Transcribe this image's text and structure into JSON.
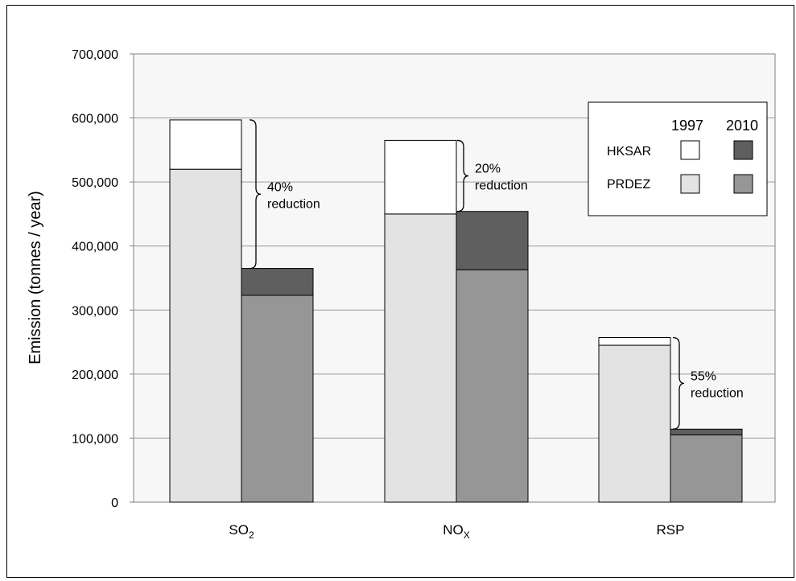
{
  "chart_data": {
    "type": "bar",
    "stacked": true,
    "ylabel": "Emission (tonnes / year)",
    "ylim": [
      0,
      700000
    ],
    "yticks": [
      0,
      100000,
      200000,
      300000,
      400000,
      500000,
      600000,
      700000
    ],
    "ytick_labels": [
      "0",
      "100,000",
      "200,000",
      "300,000",
      "400,000",
      "500,000",
      "600,000",
      "700,000"
    ],
    "grid": true,
    "categories": [
      {
        "base": "SO",
        "sub": "2"
      },
      {
        "base": "NO",
        "sub": "X"
      },
      {
        "base": "RSP",
        "sub": ""
      }
    ],
    "bars": [
      {
        "category": 0,
        "year": "1997",
        "prdez": 520000,
        "hksar": 77000
      },
      {
        "category": 0,
        "year": "2010",
        "prdez": 323000,
        "hksar": 42000
      },
      {
        "category": 1,
        "year": "1997",
        "prdez": 450000,
        "hksar": 115000
      },
      {
        "category": 1,
        "year": "2010",
        "prdez": 363000,
        "hksar": 91000
      },
      {
        "category": 2,
        "year": "1997",
        "prdez": 245000,
        "hksar": 12000
      },
      {
        "category": 2,
        "year": "2010",
        "prdez": 105000,
        "hksar": 9000
      }
    ],
    "colors": {
      "hksar_1997": "#ffffff",
      "hksar_2010": "#5f5f5f",
      "prdez_1997": "#e3e3e3",
      "prdez_2010": "#969696",
      "plot_bg": "#f7f7f7"
    },
    "legend": {
      "placement": "top-right",
      "years": [
        "1997",
        "2010"
      ],
      "rows": [
        "HKSAR",
        "PRDEZ"
      ]
    },
    "annotations": [
      {
        "category": 0,
        "line1": "40%",
        "line2": "reduction",
        "from": 597000,
        "to": 365000
      },
      {
        "category": 1,
        "line1": "20%",
        "line2": "reduction",
        "from": 565000,
        "to": 454000
      },
      {
        "category": 2,
        "line1": "55%",
        "line2": "reduction",
        "from": 257000,
        "to": 114000
      }
    ]
  }
}
